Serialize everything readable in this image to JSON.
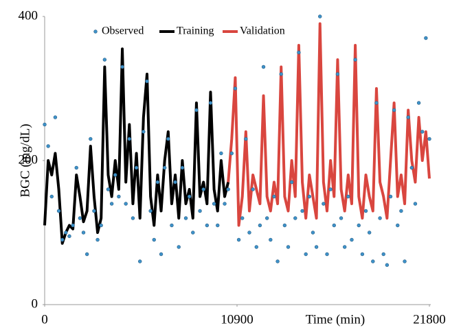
{
  "chart_data": {
    "type": "line",
    "xlabel": "Time (min)",
    "ylabel": "BGC (mg/dL)",
    "xlim": [
      0,
      21800
    ],
    "ylim": [
      0,
      400
    ],
    "xticks": [
      0,
      10900,
      21800
    ],
    "yticks": [
      0,
      200,
      400
    ],
    "grid": false,
    "legend": "top",
    "series": [
      {
        "name": "Observed",
        "color": "#3e92c9",
        "mode": "markers",
        "x": [
          0,
          200,
          400,
          600,
          800,
          1000,
          1200,
          1400,
          1600,
          1800,
          2000,
          2200,
          2400,
          2600,
          2800,
          3000,
          3200,
          3400,
          3600,
          3800,
          4000,
          4200,
          4400,
          4600,
          4800,
          5000,
          5200,
          5400,
          5600,
          5800,
          6000,
          6200,
          6400,
          6600,
          6800,
          7000,
          7200,
          7400,
          7600,
          7800,
          8000,
          8200,
          8400,
          8600,
          8800,
          9000,
          9200,
          9400,
          9600,
          9800,
          10000,
          10200,
          10400,
          10600,
          10800,
          11000,
          11200,
          11400,
          11600,
          11800,
          12000,
          12200,
          12400,
          12600,
          12800,
          13000,
          13200,
          13400,
          13600,
          13800,
          14000,
          14200,
          14400,
          14600,
          14800,
          15000,
          15200,
          15400,
          15600,
          15800,
          16000,
          16200,
          16400,
          16600,
          16800,
          17000,
          17200,
          17400,
          17600,
          17800,
          18000,
          18200,
          18400,
          18600,
          18800,
          19000,
          19200,
          19400,
          19600,
          19800,
          20000,
          20200,
          20400,
          20600,
          20800,
          21000,
          21200,
          21400,
          21600,
          21800
        ],
        "values": [
          250,
          220,
          150,
          260,
          130,
          90,
          100,
          95,
          110,
          190,
          120,
          100,
          70,
          230,
          130,
          90,
          110,
          340,
          160,
          140,
          180,
          150,
          330,
          140,
          230,
          120,
          190,
          60,
          240,
          310,
          130,
          90,
          170,
          70,
          190,
          230,
          110,
          170,
          80,
          190,
          120,
          150,
          100,
          270,
          130,
          160,
          110,
          280,
          140,
          110,
          210,
          140,
          160,
          210,
          300,
          90,
          120,
          230,
          100,
          160,
          80,
          110,
          330,
          120,
          90,
          150,
          60,
          320,
          110,
          80,
          170,
          120,
          350,
          130,
          70,
          150,
          100,
          80,
          400,
          140,
          70,
          160,
          110,
          320,
          120,
          80,
          150,
          90,
          340,
          110,
          70,
          130,
          100,
          60,
          280,
          120,
          70,
          55,
          150,
          270,
          110,
          130,
          60,
          260,
          190,
          140,
          280,
          240,
          370,
          230
        ]
      },
      {
        "name": "Training",
        "color": "#000000",
        "mode": "lines",
        "x": [
          0,
          200,
          400,
          600,
          800,
          1000,
          1200,
          1400,
          1600,
          1800,
          2000,
          2200,
          2400,
          2600,
          2800,
          3000,
          3200,
          3400,
          3600,
          3800,
          4000,
          4200,
          4400,
          4600,
          4800,
          5000,
          5200,
          5400,
          5600,
          5800,
          6000,
          6200,
          6400,
          6600,
          6800,
          7000,
          7200,
          7400,
          7600,
          7800,
          8000,
          8200,
          8400,
          8600,
          8800,
          9000,
          9200,
          9400,
          9600,
          9800,
          10000,
          10200,
          10400
        ],
        "values": [
          110,
          200,
          180,
          210,
          160,
          85,
          100,
          110,
          105,
          180,
          150,
          115,
          130,
          220,
          150,
          100,
          120,
          330,
          180,
          150,
          200,
          160,
          355,
          170,
          250,
          140,
          210,
          120,
          260,
          320,
          150,
          110,
          180,
          130,
          200,
          240,
          140,
          180,
          120,
          200,
          140,
          160,
          120,
          280,
          150,
          170,
          140,
          295,
          160,
          130,
          200,
          150,
          170
        ]
      },
      {
        "name": "Validation",
        "color": "#d9463f",
        "mode": "lines",
        "x": [
          10400,
          10600,
          10800,
          11000,
          11200,
          11400,
          11600,
          11800,
          12000,
          12200,
          12400,
          12600,
          12800,
          13000,
          13200,
          13400,
          13600,
          13800,
          14000,
          14200,
          14400,
          14600,
          14800,
          15000,
          15200,
          15400,
          15600,
          15800,
          16000,
          16200,
          16400,
          16600,
          16800,
          17000,
          17200,
          17400,
          17600,
          17800,
          18000,
          18200,
          18400,
          18600,
          18800,
          19000,
          19200,
          19400,
          19600,
          19800,
          20000,
          20200,
          20400,
          20600,
          20800,
          21000,
          21200,
          21400,
          21600,
          21800
        ],
        "values": [
          170,
          230,
          315,
          110,
          150,
          240,
          130,
          180,
          160,
          140,
          290,
          150,
          130,
          170,
          140,
          330,
          150,
          130,
          200,
          150,
          360,
          170,
          120,
          180,
          150,
          120,
          390,
          170,
          130,
          200,
          150,
          340,
          160,
          130,
          180,
          140,
          360,
          150,
          120,
          180,
          150,
          130,
          300,
          170,
          150,
          120,
          200,
          280,
          150,
          180,
          140,
          270,
          200,
          170,
          260,
          200,
          240,
          175
        ]
      }
    ]
  }
}
